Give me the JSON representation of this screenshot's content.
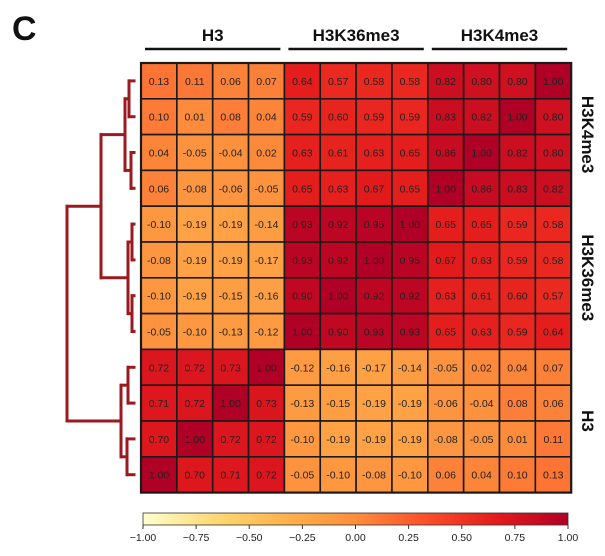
{
  "panel_label": "C",
  "chart_data": {
    "type": "heatmap",
    "column_groups": [
      "H3",
      "H3K36me3",
      "H3K4me3"
    ],
    "row_groups": [
      "H3K4me3",
      "H3K36me3",
      "H3"
    ],
    "values": [
      [
        0.13,
        0.11,
        0.06,
        0.07,
        0.64,
        0.57,
        0.58,
        0.58,
        0.82,
        0.8,
        0.8,
        1.0
      ],
      [
        0.1,
        0.01,
        0.08,
        0.04,
        0.59,
        0.6,
        0.59,
        0.59,
        0.83,
        0.82,
        1.0,
        0.8
      ],
      [
        0.04,
        -0.05,
        -0.04,
        0.02,
        0.63,
        0.61,
        0.63,
        0.65,
        0.86,
        1.0,
        0.82,
        0.8
      ],
      [
        0.06,
        -0.08,
        -0.06,
        -0.05,
        0.65,
        0.63,
        0.67,
        0.65,
        1.0,
        0.86,
        0.83,
        0.82
      ],
      [
        -0.1,
        -0.19,
        -0.19,
        -0.14,
        0.93,
        0.92,
        0.95,
        1.0,
        0.65,
        0.65,
        0.59,
        0.58
      ],
      [
        -0.08,
        -0.19,
        -0.19,
        -0.17,
        0.93,
        0.92,
        1.0,
        0.95,
        0.67,
        0.63,
        0.59,
        0.58
      ],
      [
        -0.1,
        -0.19,
        -0.15,
        -0.16,
        0.9,
        1.0,
        0.92,
        0.92,
        0.63,
        0.61,
        0.6,
        0.57
      ],
      [
        -0.05,
        -0.1,
        -0.13,
        -0.12,
        1.0,
        0.9,
        0.93,
        0.93,
        0.65,
        0.63,
        0.59,
        0.64
      ],
      [
        0.72,
        0.72,
        0.73,
        1.0,
        -0.12,
        -0.16,
        -0.17,
        -0.14,
        -0.05,
        0.02,
        0.04,
        0.07
      ],
      [
        0.71,
        0.72,
        1.0,
        0.73,
        -0.13,
        -0.15,
        -0.19,
        -0.19,
        -0.06,
        -0.04,
        0.08,
        0.06
      ],
      [
        0.7,
        1.0,
        0.72,
        0.72,
        -0.1,
        -0.19,
        -0.19,
        -0.19,
        -0.08,
        -0.05,
        0.01,
        0.11
      ],
      [
        1.0,
        0.7,
        0.71,
        0.72,
        -0.05,
        -0.1,
        -0.08,
        -0.1,
        0.06,
        0.04,
        0.1,
        0.13
      ]
    ],
    "value_labels": [
      [
        "0.13",
        "0.11",
        "0.06",
        "0.07",
        "0.64",
        "0.57",
        "0.58",
        "0.58",
        "0.82",
        "0.80",
        "0.80",
        "1.00"
      ],
      [
        "0.10",
        "0.01",
        "0.08",
        "0.04",
        "0.59",
        "0.60",
        "0.59",
        "0.59",
        "0.83",
        "0.82",
        "1.00",
        "0.80"
      ],
      [
        "0.04",
        "-0.05",
        "-0.04",
        "0.02",
        "0.63",
        "0.61",
        "0.63",
        "0.65",
        "0.86",
        "1.00",
        "0.82",
        "0.80"
      ],
      [
        "0.06",
        "-0.08",
        "-0.06",
        "-0.05",
        "0.65",
        "0.63",
        "0.67",
        "0.65",
        "1.00",
        "0.86",
        "0.83",
        "0.82"
      ],
      [
        "-0.10",
        "-0.19",
        "-0.19",
        "-0.14",
        "0.93",
        "0.92",
        "0.95",
        "1.00",
        "0.65",
        "0.65",
        "0.59",
        "0.58"
      ],
      [
        "-0.08",
        "-0.19",
        "-0.19",
        "-0.17",
        "0.93",
        "0.92",
        "1.00",
        "0.95",
        "0.67",
        "0.63",
        "0.59",
        "0.58"
      ],
      [
        "-0.10",
        "-0.19",
        "-0.15",
        "-0.16",
        "0.90",
        "1.00",
        "0.92",
        "0.92",
        "0.63",
        "0.61",
        "0.60",
        "0.57"
      ],
      [
        "-0.05",
        "-0.10",
        "-0.13",
        "-0.12",
        "1.00",
        "0.90",
        "0.93",
        "0.93",
        "0.65",
        "0.63",
        "0.59",
        "0.64"
      ],
      [
        "0.72",
        "0.72",
        "0.73",
        "1.00",
        "-0.12",
        "-0.16",
        "-0.17",
        "-0.14",
        "-0.05",
        "0.02",
        "0.04",
        "0.07"
      ],
      [
        "0.71",
        "0.72",
        "1.00",
        "0.73",
        "-0.13",
        "-0.15",
        "-0.19",
        "-0.19",
        "-0.06",
        "-0.04",
        "0.08",
        "0.06"
      ],
      [
        "0.70",
        "1.00",
        "0.72",
        "0.72",
        "-0.10",
        "-0.19",
        "-0.19",
        "-0.19",
        "-0.08",
        "-0.05",
        "0.01",
        "0.11"
      ],
      [
        "1.00",
        "0.70",
        "0.71",
        "0.72",
        "-0.05",
        "-0.10",
        "-0.08",
        "-0.10",
        "0.06",
        "0.04",
        "0.10",
        "0.13"
      ]
    ],
    "colorbar": {
      "range": [
        -1.0,
        1.0
      ],
      "ticks": [
        "−1.00",
        "−0.75",
        "−0.50",
        "−0.25",
        "0.00",
        "0.25",
        "0.50",
        "0.75",
        "1.00"
      ],
      "colors": [
        "#ffffcc",
        "#fed976",
        "#feb24c",
        "#fd8d3c",
        "#fc4e2a",
        "#e31a1c",
        "#b10026"
      ]
    },
    "dendrogram_color": "#9b1a1f",
    "cell_border_color": "#1a1a1a"
  }
}
